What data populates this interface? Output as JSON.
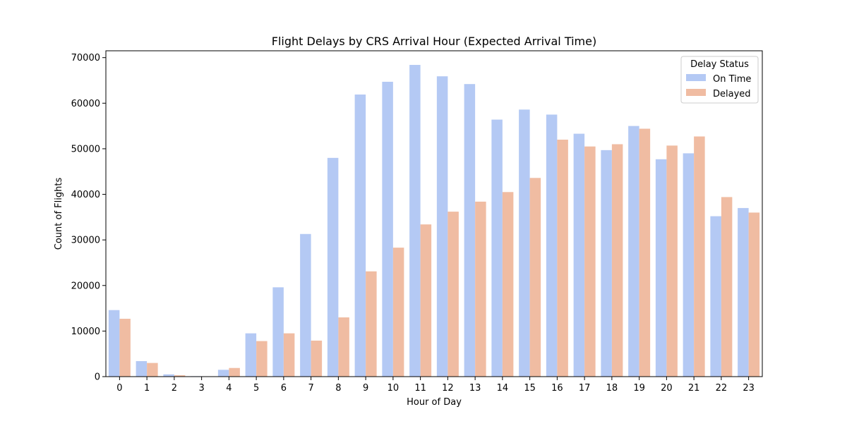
{
  "chart_data": {
    "type": "bar",
    "title": "Flight Delays by CRS Arrival Hour (Expected Arrival Time)",
    "xlabel": "Hour of Day",
    "ylabel": "Count of Flights",
    "ylim": [
      0,
      71500
    ],
    "yticks": [
      0,
      10000,
      20000,
      30000,
      40000,
      50000,
      60000,
      70000
    ],
    "grid": false,
    "legend": {
      "title": "Delay Status",
      "placement": "top-right"
    },
    "categories": [
      "0",
      "1",
      "2",
      "3",
      "4",
      "5",
      "6",
      "7",
      "8",
      "9",
      "10",
      "11",
      "12",
      "13",
      "14",
      "15",
      "16",
      "17",
      "18",
      "19",
      "20",
      "21",
      "22",
      "23"
    ],
    "series": [
      {
        "name": "On Time",
        "color": "#b4c9f4",
        "values": [
          14600,
          3400,
          500,
          100,
          1500,
          9500,
          19600,
          31300,
          48000,
          61900,
          64700,
          68400,
          65900,
          64200,
          56400,
          58600,
          57500,
          53300,
          49700,
          55000,
          47700,
          49000,
          35200,
          37000
        ]
      },
      {
        "name": "Delayed",
        "color": "#f0bca2",
        "values": [
          12700,
          3000,
          300,
          50,
          1900,
          7800,
          9500,
          7900,
          13000,
          23100,
          28300,
          33400,
          36200,
          38400,
          40500,
          43600,
          52000,
          50500,
          51000,
          54400,
          50700,
          52700,
          39400,
          36000
        ]
      }
    ]
  }
}
